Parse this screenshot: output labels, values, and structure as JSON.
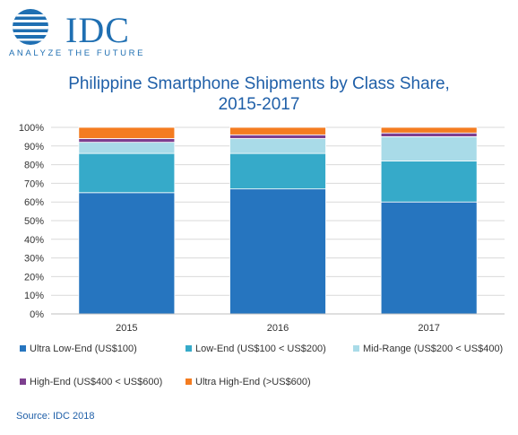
{
  "logo": {
    "name": "IDC",
    "tagline": "ANALYZE THE FUTURE"
  },
  "chart_data": {
    "type": "bar",
    "stacked": true,
    "title_line1": "Philippine Smartphone Shipments by Class Share,",
    "title_line2": "2015-2017",
    "categories": [
      "2015",
      "2016",
      "2017"
    ],
    "ylim": [
      0,
      100
    ],
    "y_ticks": [
      "0%",
      "10%",
      "20%",
      "30%",
      "40%",
      "50%",
      "60%",
      "70%",
      "80%",
      "90%",
      "100%"
    ],
    "grid": true,
    "legend_position": "bottom",
    "series": [
      {
        "name": "Ultra Low-End (US$100)",
        "color": "#2675bf",
        "values": [
          65,
          67,
          60
        ]
      },
      {
        "name": "Low-End (US$100 < US$200)",
        "color": "#36aac9",
        "values": [
          21,
          19,
          22
        ]
      },
      {
        "name": "Mid-Range (US$200 < US$400)",
        "color": "#a9dbe8",
        "values": [
          6,
          8,
          13
        ]
      },
      {
        "name": "High-End (US$400 < US$600)",
        "color": "#7d3f8f",
        "values": [
          2,
          2,
          2
        ]
      },
      {
        "name": "Ultra High-End  (>US$600)",
        "color": "#f47c20",
        "values": [
          6,
          4,
          3
        ]
      }
    ]
  },
  "source": "Source: IDC 2018"
}
